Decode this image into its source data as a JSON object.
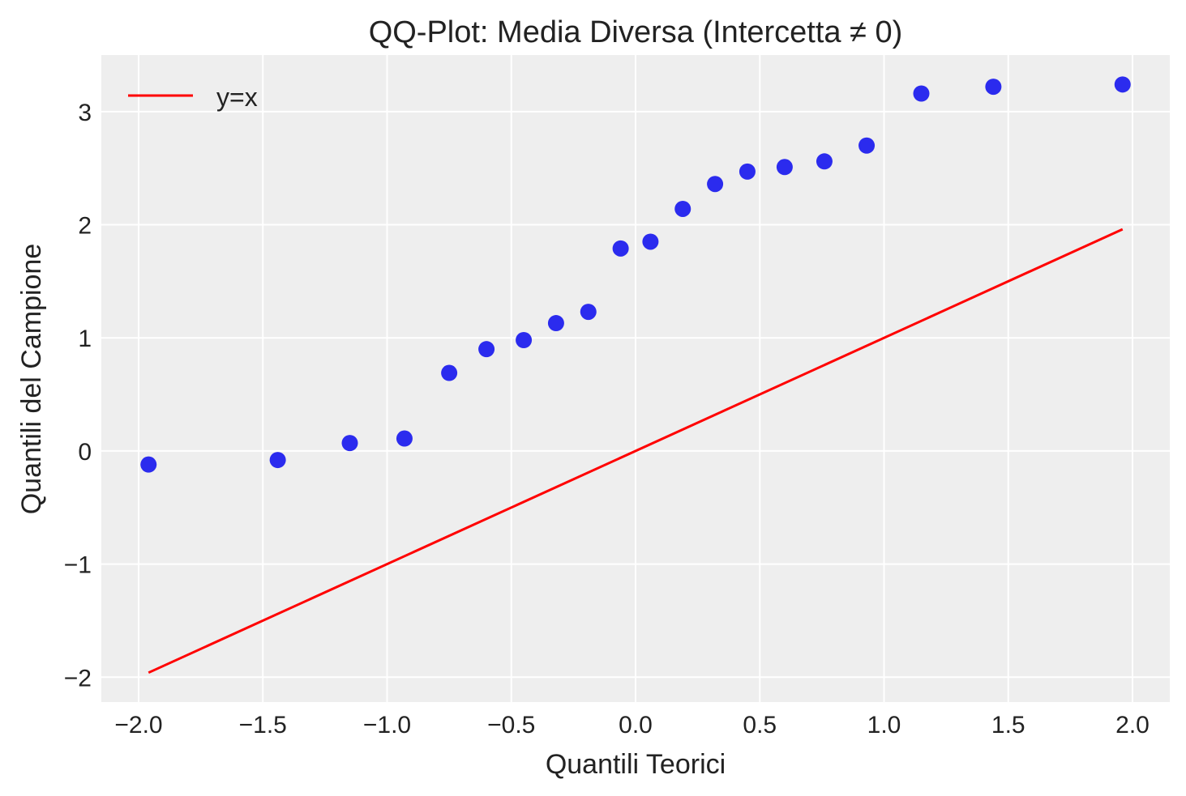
{
  "chart_data": {
    "type": "scatter",
    "title": "QQ-Plot: Media Diversa (Intercetta ≠ 0)",
    "xlabel": "Quantili Teorici",
    "ylabel": "Quantili del Campione",
    "xlim": [
      -2.15,
      2.15
    ],
    "ylim": [
      -2.22,
      3.5
    ],
    "xticks": [
      -2.0,
      -1.5,
      -1.0,
      -0.5,
      0.0,
      0.5,
      1.0,
      1.5,
      2.0
    ],
    "xtick_labels": [
      "−2.0",
      "−1.5",
      "−1.0",
      "−0.5",
      "0.0",
      "0.5",
      "1.0",
      "1.5",
      "2.0"
    ],
    "yticks": [
      -2,
      -1,
      0,
      1,
      2,
      3
    ],
    "ytick_labels": [
      "−2",
      "−1",
      "0",
      "1",
      "2",
      "3"
    ],
    "grid": true,
    "legend_position": "top-left",
    "colors": {
      "background": "#eeeeee",
      "grid": "#ffffff",
      "points": "#2b2bee",
      "line": "#ff0000"
    },
    "series": [
      {
        "kind": "scatter",
        "x": [
          -1.96,
          -1.44,
          -1.15,
          -0.93,
          -0.75,
          -0.6,
          -0.45,
          -0.32,
          -0.19,
          -0.06,
          0.06,
          0.19,
          0.32,
          0.45,
          0.6,
          0.76,
          0.93,
          1.15,
          1.44,
          1.96
        ],
        "y": [
          -0.12,
          -0.08,
          0.07,
          0.11,
          0.69,
          0.9,
          0.98,
          1.13,
          1.23,
          1.79,
          1.85,
          2.14,
          2.36,
          2.47,
          2.51,
          2.56,
          2.7,
          3.16,
          3.22,
          3.24
        ]
      },
      {
        "kind": "line",
        "name": "y=x",
        "x": [
          -1.96,
          1.96
        ],
        "y": [
          -1.96,
          1.96
        ]
      }
    ]
  }
}
